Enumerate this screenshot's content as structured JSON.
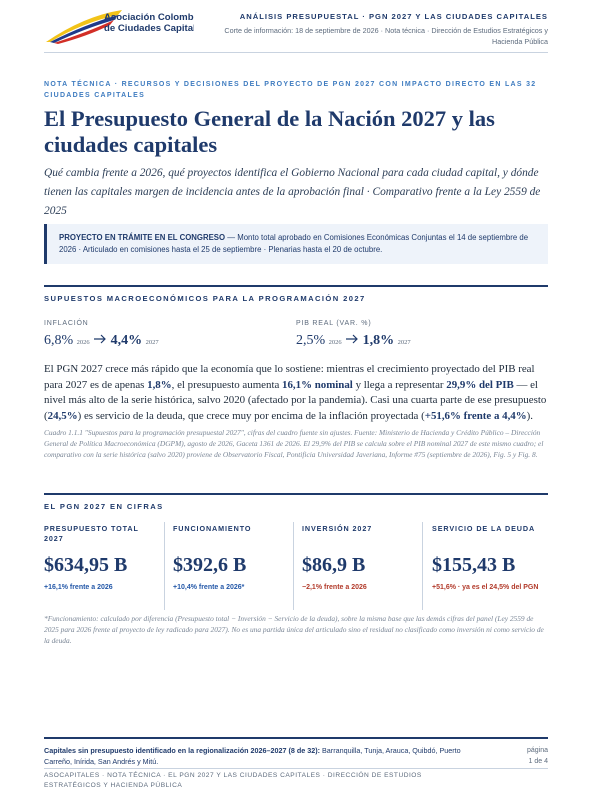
{
  "header": {
    "org_line1": "Asociación Colombiana",
    "org_line2": "de Ciudades Capitales",
    "section": "ANÁLISIS PRESUPUESTAL · PGN 2027 Y LAS CIUDADES CAPITALES",
    "meta": "Corte de información: 18 de septiembre de 2026 · Nota técnica · Dirección de Estudios Estratégicos y Hacienda Pública"
  },
  "kicker": "NOTA TÉCNICA · RECURSOS Y DECISIONES DEL PROYECTO DE PGN 2027 CON IMPACTO DIRECTO EN LAS 32 CIUDADES CAPITALES",
  "title": "El Presupuesto General de la Nación 2027 y las ciudades capitales",
  "subtitle": "Qué cambia frente a 2026, qué proyectos identifica el Gobierno Nacional para cada ciudad capital, y dónde tienen las capitales margen de incidencia antes de la aprobación final · Comparativo frente a la Ley 2559 de 2025",
  "callout": {
    "lead": "PROYECTO EN TRÁMITE EN EL CONGRESO",
    "text": " — Monto total aprobado en Comisiones Económicas Conjuntas el 14 de septiembre de 2026 · Articulado en comisiones hasta el 25 de septiembre · Plenarias hasta el 20 de octubre."
  },
  "macro": {
    "heading": "SUPUESTOS MACROECONÓMICOS PARA LA PROGRAMACIÓN 2027",
    "items": [
      {
        "label": "INFLACIÓN",
        "from": "6,8%",
        "from_year": "2026",
        "to": "4,4%",
        "to_year": "2027"
      },
      {
        "label": "PIB REAL (VAR. %)",
        "from": "2,5%",
        "from_year": "2026",
        "to": "1,8%",
        "to_year": "2027"
      }
    ],
    "paragraph": [
      "El PGN 2027 crece más rápido que la economía que lo sostiene: mientras el crecimiento proyectado del PIB real para 2027 es de apenas ",
      "1,8%",
      ", el presupuesto aumenta ",
      "16,1% nominal",
      " y llega a representar ",
      "29,9% del PIB",
      " — el nivel más alto de la serie histórica, salvo 2020 (afectado por la pandemia). Casi una cuarta parte de ese presupuesto (",
      "24,5%",
      ") es servicio de la deuda, que crece muy por encima de la inflación proyectada (",
      "+51,6% frente a 4,4%",
      ")."
    ],
    "source": "Cuadro 1.1.1 \"Supuestos para la programación presupuestal 2027\", cifras del cuadro fuente sin ajustes. Fuente: Ministerio de Hacienda y Crédito Público – Dirección General de Política Macroeconómica (DGPM), agosto de 2026, Gaceta 1361 de 2026. El 29,9% del PIB se calcula sobre el PIB nominal 2027 de este mismo cuadro; el comparativo con la serie histórica (salvo 2020) proviene de Observatorio Fiscal, Pontificia Universidad Javeriana, Informe #75 (septiembre de 2026), Fig. 5 y Fig. 8."
  },
  "figures": {
    "heading": "EL PGN 2027 EN CIFRAS",
    "cards": [
      {
        "label": "PRESUPUESTO TOTAL 2027",
        "value": "$634,95 B",
        "change": "+16,1% frente a 2026"
      },
      {
        "label": "FUNCIONAMIENTO",
        "value": "$392,6 B",
        "change": "+10,4% frente a 2026*"
      },
      {
        "label": "INVERSIÓN 2027",
        "value": "$86,9 B",
        "change": "−2,1% frente a 2026"
      },
      {
        "label": "SERVICIO DE LA DEUDA",
        "value": "$155,43 B",
        "change": "+51,6% · ya es el 24,5% del PGN"
      }
    ],
    "footnote": "*Funcionamiento: calculado por diferencia (Presupuesto total − Inversión − Servicio de la deuda), sobre la misma base que las demás cifras del panel (Ley 2559 de 2025 para 2026 frente al proyecto de ley radicado para 2027). No es una partida única del articulado sino el residual no clasificado como inversión ni como servicio de la deuda."
  },
  "footer": {
    "lead": "Capitales sin presupuesto identificado en la regionalización 2026–2027 (8 de 32):",
    "text": " Barranquilla, Tunja, Arauca, Quibdó, Puerto Carreño, Inírida, San Andrés y Mitú.",
    "page_label": "página",
    "page": "1 de 4",
    "running": "ASOCAPITALES · NOTA TÉCNICA · EL PGN 2027 Y LAS CIUDADES CAPITALES · DIRECCIÓN DE ESTUDIOS ESTRATÉGICOS Y HACIENDA PÚBLICA"
  }
}
